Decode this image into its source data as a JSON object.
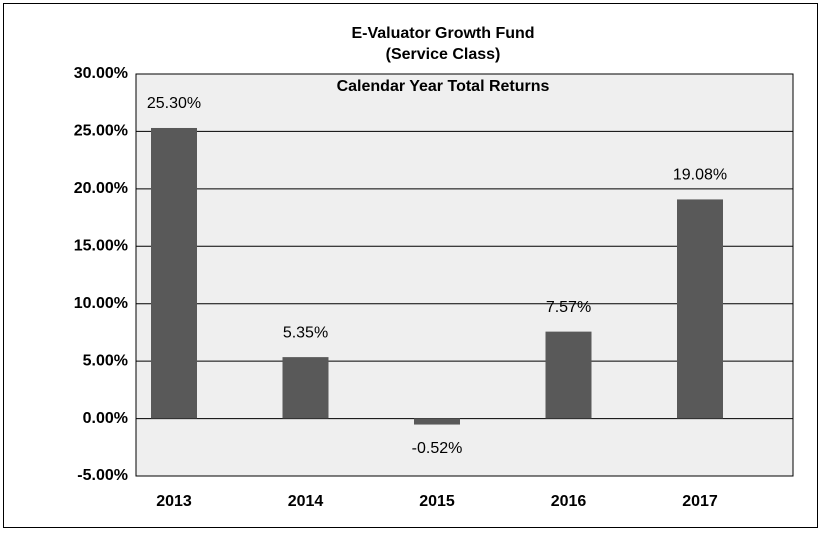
{
  "chart_data": {
    "type": "bar",
    "title": "E-Valuator Growth Fund",
    "subtitle": "(Service Class)",
    "annotation": "Calendar Year Total Returns",
    "categories": [
      "2013",
      "2014",
      "2015",
      "2016",
      "2017"
    ],
    "values": [
      25.3,
      5.35,
      -0.52,
      7.57,
      19.08
    ],
    "value_labels": [
      "25.30%",
      "5.35%",
      "-0.52%",
      "7.57%",
      "19.08%"
    ],
    "color": "#595959",
    "ylim": [
      -5,
      30
    ],
    "yticks": [
      {
        "value": -5,
        "label": "-5.00%"
      },
      {
        "value": 0,
        "label": "0.00%"
      },
      {
        "value": 5,
        "label": "5.00%"
      },
      {
        "value": 10,
        "label": "10.00%"
      },
      {
        "value": 15,
        "label": "15.00%"
      },
      {
        "value": 20,
        "label": "20.00%"
      },
      {
        "value": 25,
        "label": "25.00%"
      },
      {
        "value": 30,
        "label": "30.00%"
      }
    ],
    "grid": true
  }
}
